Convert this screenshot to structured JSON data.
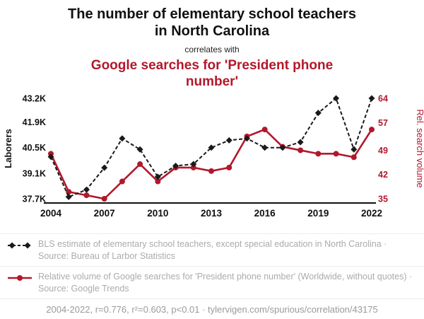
{
  "header": {
    "title": "The number of elementary school teachers in North Carolina",
    "correlates_with": "correlates with",
    "subtitle": "Google searches for 'President phone number'"
  },
  "legend": {
    "items": [
      {
        "text": "BLS estimate of elementary school teachers, except special education in North Carolina · Source: Bureau of Larbor Statistics",
        "style": "dashed-diamond",
        "color": "#1a1a1a"
      },
      {
        "text": "Relative volume of Google searches for 'President phone number' (Worldwide, without quotes) · Source: Google Trends",
        "style": "solid-circle",
        "color": "#b2182b"
      }
    ]
  },
  "footer": {
    "text": "2004-2022, r=0.776, r²=0.603, p<0.01 · tylervigen.com/spurious/correlation/43175"
  },
  "colors": {
    "accent_red": "#b2182b",
    "ink": "#111111",
    "muted_text": "#ababab",
    "divider": "#ececec"
  },
  "chart_data": {
    "type": "line",
    "x": [
      2004,
      2005,
      2006,
      2007,
      2008,
      2009,
      2010,
      2011,
      2012,
      2013,
      2014,
      2015,
      2016,
      2017,
      2018,
      2019,
      2020,
      2021,
      2022
    ],
    "x_ticks": [
      2004,
      2007,
      2010,
      2013,
      2016,
      2019,
      2022
    ],
    "left_axis": {
      "label": "Laborers",
      "min": 37.7,
      "max": 43.2,
      "color": "#111111",
      "ticks": [
        {
          "v": 43.2,
          "label": "43.2K"
        },
        {
          "v": 41.9,
          "label": "41.9K"
        },
        {
          "v": 40.5,
          "label": "40.5K"
        },
        {
          "v": 39.1,
          "label": "39.1K"
        },
        {
          "v": 37.7,
          "label": "37.7K"
        }
      ]
    },
    "right_axis": {
      "label": "Rel. search volume",
      "min": 35,
      "max": 64,
      "color": "#b2182b",
      "ticks": [
        {
          "v": 64,
          "label": "64"
        },
        {
          "v": 57,
          "label": "57"
        },
        {
          "v": 49,
          "label": "49"
        },
        {
          "v": 42,
          "label": "42"
        },
        {
          "v": 35,
          "label": "35"
        }
      ]
    },
    "series": [
      {
        "name": "BLS estimate of elementary school teachers, except special education in North Carolina",
        "axis": "left",
        "color": "#1a1a1a",
        "style": "dashed-diamond",
        "values": [
          40.0,
          37.8,
          38.2,
          39.4,
          41.0,
          40.4,
          38.9,
          39.5,
          39.6,
          40.5,
          40.9,
          41.0,
          40.5,
          40.5,
          40.8,
          42.4,
          43.2,
          40.4,
          43.2
        ]
      },
      {
        "name": "Relative volume of Google searches for 'President phone number'",
        "axis": "right",
        "color": "#b2182b",
        "style": "solid-circle",
        "values": [
          48,
          37,
          36,
          35,
          40,
          45,
          40,
          44,
          44,
          43,
          44,
          53,
          55,
          50,
          49,
          48,
          48,
          47,
          55
        ]
      }
    ]
  }
}
